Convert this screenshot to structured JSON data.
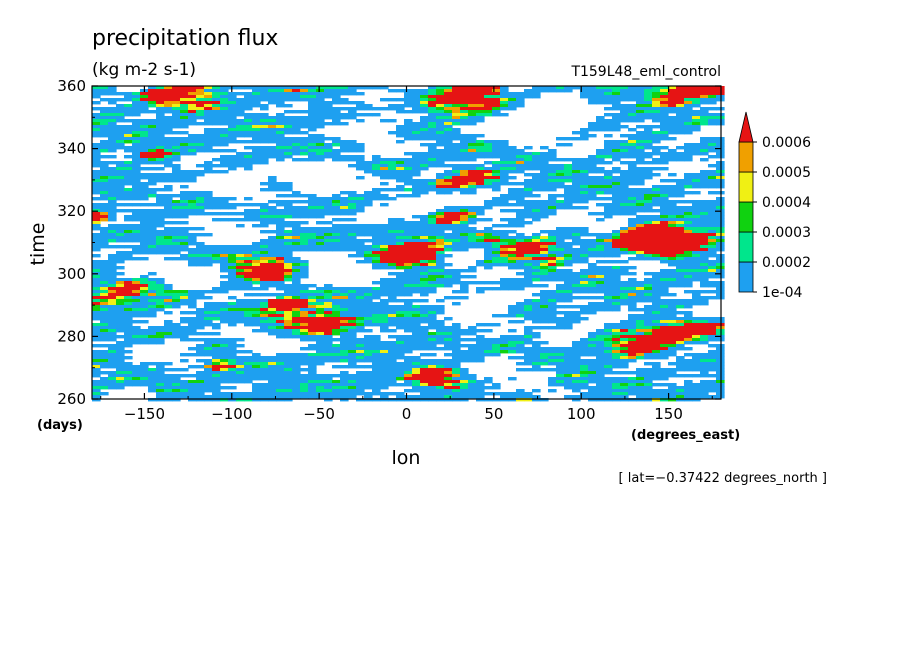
{
  "chart_data": {
    "type": "heatmap",
    "title": "precipitation flux",
    "subtitle": "(kg m-2 s-1)",
    "run_label": "T159L48_eml_control",
    "xlabel": "lon",
    "x_units": "(degrees_east)",
    "ylabel": "time",
    "y_units": "(days)",
    "xlim": [
      -180,
      180
    ],
    "ylim": [
      260,
      360
    ],
    "x_ticks": [
      -150,
      -100,
      -50,
      0,
      50,
      100,
      150
    ],
    "x_tick_labels": [
      "−150",
      "−100",
      "−50",
      "0",
      "50",
      "100",
      "150"
    ],
    "y_ticks": [
      260,
      280,
      300,
      320,
      340,
      360
    ],
    "y_tick_labels": [
      "260",
      "280",
      "300",
      "320",
      "340",
      "360"
    ],
    "annotation": "[ lat=−0.37422 degrees_north ]",
    "grid": false,
    "legend_position": "right",
    "colorbar": {
      "levels": [
        0.0001,
        0.0002,
        0.0003,
        0.0004,
        0.0005,
        0.0006
      ],
      "labels": [
        "1e-04",
        "0.0002",
        "0.0003",
        "0.0004",
        "0.0005",
        "0.0006"
      ],
      "colors": [
        "#1ea0f0",
        "#00e68c",
        "#10d210",
        "#f0f014",
        "#f0a000",
        "#e61414"
      ],
      "extend": "max"
    },
    "field_description": "Hovmoller of tropical precipitation; mostly light rain (1e-04 to 3e-04) with scattered dry patches and eastward-propagating heavy rain streaks above 6e-04."
  }
}
